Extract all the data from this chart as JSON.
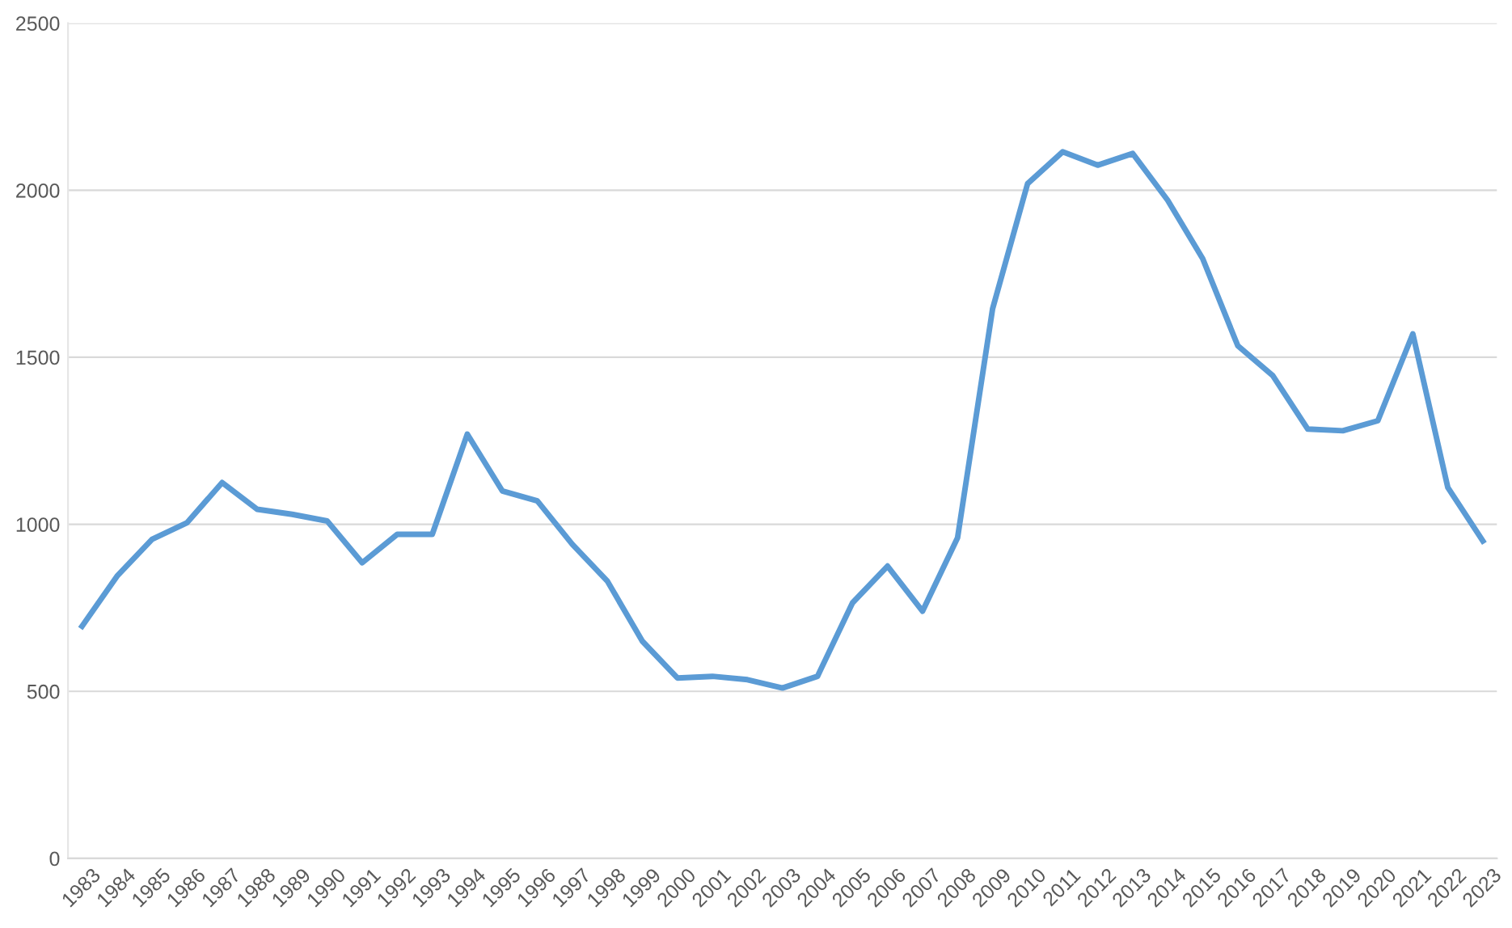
{
  "chart_data": {
    "type": "line",
    "categories": [
      "1983",
      "1984",
      "1985",
      "1986",
      "1987",
      "1988",
      "1989",
      "1990",
      "1991",
      "1992",
      "1993",
      "1994",
      "1995",
      "1996",
      "1997",
      "1998",
      "1999",
      "2000",
      "2001",
      "2002",
      "2003",
      "2004",
      "2005",
      "2006",
      "2007",
      "2008",
      "2009",
      "2010",
      "2011",
      "2012",
      "2013",
      "2014",
      "2015",
      "2016",
      "2017",
      "2018",
      "2019",
      "2020",
      "2021",
      "2022",
      "2023"
    ],
    "series": [
      {
        "color": "#5b9bd5",
        "values": [
          695,
          845,
          955,
          1005,
          1125,
          1045,
          1030,
          1010,
          885,
          970,
          970,
          1270,
          1100,
          1070,
          940,
          830,
          650,
          540,
          545,
          535,
          510,
          545,
          765,
          875,
          740,
          960,
          1645,
          2020,
          2115,
          2075,
          2110,
          1970,
          1795,
          1535,
          1445,
          1285,
          1280,
          1310,
          1570,
          1110,
          950
        ]
      }
    ],
    "ylim": [
      0,
      2500
    ],
    "yticks": [
      0,
      500,
      1000,
      1500,
      2000,
      2500
    ],
    "grid": "y",
    "marker": "none",
    "line_style": "solid",
    "legend": false
  }
}
